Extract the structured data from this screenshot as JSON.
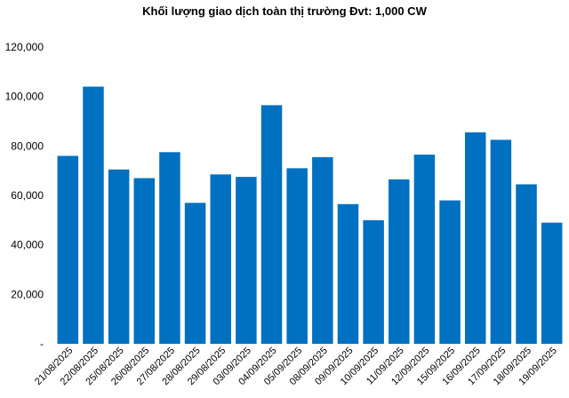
{
  "chart_data": {
    "type": "bar",
    "title": "Khối lượng giao dịch toàn thị trường Đvt: 1,000 CW",
    "xlabel": "",
    "ylabel": "",
    "ylim": [
      0,
      120000
    ],
    "yticks": [
      0,
      20000,
      40000,
      60000,
      80000,
      100000,
      120000
    ],
    "ytick_labels": [
      "-",
      "20,000",
      "40,000",
      "60,000",
      "80,000",
      "100,000",
      "120,000"
    ],
    "grid": false,
    "legend": "none",
    "bar_color": "#0070C0",
    "categories": [
      "21/08/2025",
      "22/08/2025",
      "25/08/2025",
      "26/08/2025",
      "27/08/2025",
      "28/08/2025",
      "29/08/2025",
      "03/09/2025",
      "04/09/2025",
      "05/09/2025",
      "08/09/2025",
      "09/09/2025",
      "10/09/2025",
      "11/09/2025",
      "12/09/2025",
      "15/09/2025",
      "16/09/2025",
      "17/09/2025",
      "18/09/2025",
      "19/09/2025"
    ],
    "values": [
      76000,
      104000,
      70500,
      67000,
      77500,
      57000,
      68500,
      67500,
      96500,
      71000,
      75500,
      56500,
      50000,
      66500,
      76500,
      58000,
      85500,
      82500,
      64500,
      49000
    ]
  }
}
